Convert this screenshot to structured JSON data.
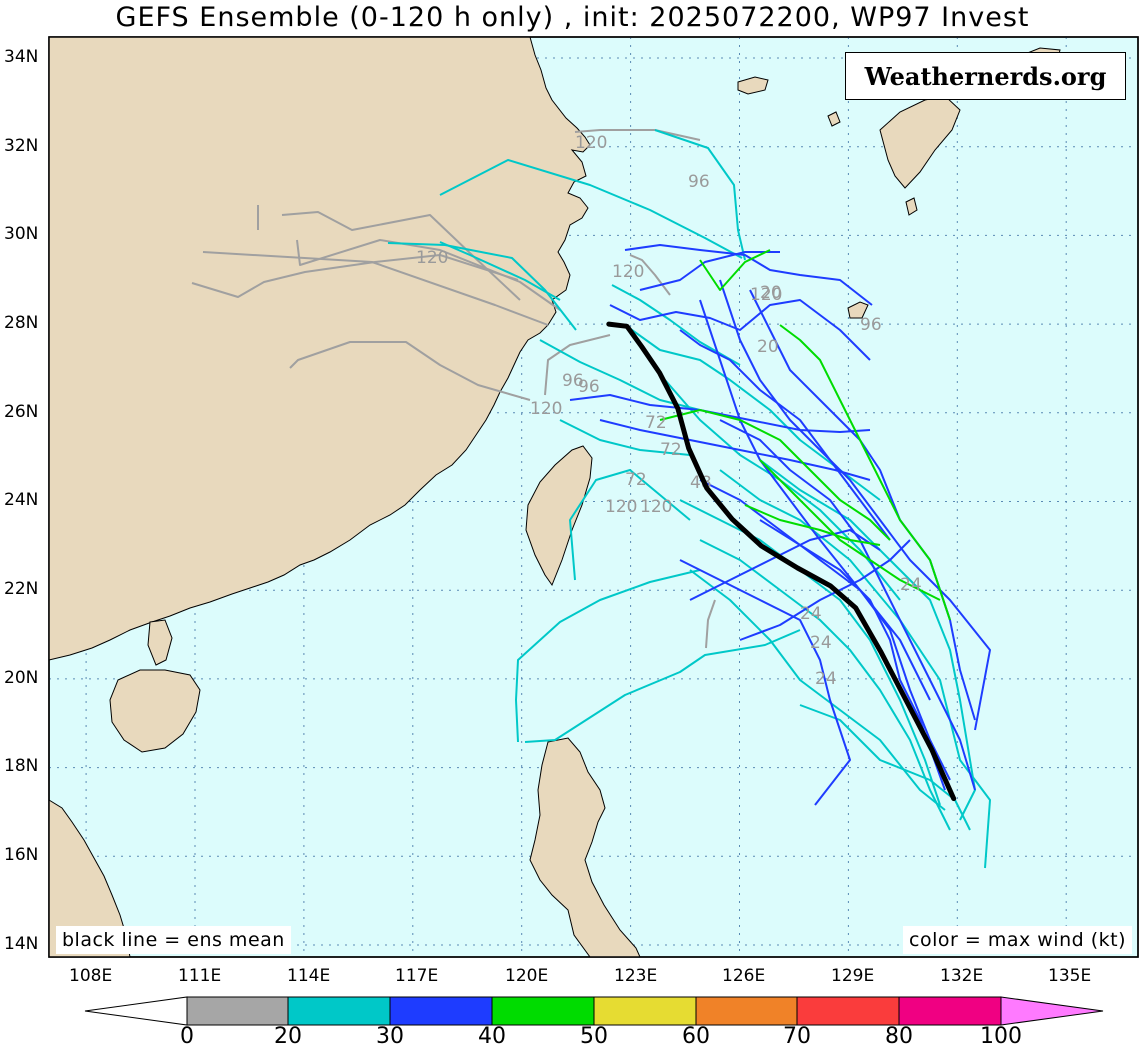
{
  "title": "GEFS Ensemble (0-120 h only) , init: 2025072200, WP97 Invest",
  "brand": "Weathernerds.org",
  "legend_left": "black line = ens mean",
  "legend_right": "color = max wind (kt)",
  "lat_labels": [
    "34N",
    "32N",
    "30N",
    "28N",
    "26N",
    "24N",
    "22N",
    "20N",
    "18N",
    "16N",
    "14N"
  ],
  "lon_labels": [
    "108E",
    "111E",
    "114E",
    "117E",
    "120E",
    "123E",
    "126E",
    "129E",
    "132E",
    "135E"
  ],
  "colorbar": {
    "ticks": [
      "0",
      "20",
      "30",
      "40",
      "50",
      "60",
      "70",
      "80",
      "100"
    ],
    "colors": [
      "#a6a6a6",
      "#00c8c8",
      "#1e3cff",
      "#00dc00",
      "#e6dc32",
      "#f08228",
      "#fa3c3c",
      "#f00082",
      "#ff7aff"
    ]
  },
  "track_colors": {
    "gray": "#a0a0a0",
    "cyan": "#00c8c8",
    "blue": "#1e3cff",
    "green": "#00dc00",
    "mean": "#000000"
  },
  "map_colors": {
    "ocean": "#dcfcfc",
    "land": "#e8d9bd",
    "grid": "#5a8ab4"
  },
  "hour_labels": [
    "120",
    "96",
    "120",
    "120",
    "120",
    "20",
    "96",
    "120",
    "20",
    "24",
    "24",
    "24",
    "24",
    "96",
    "72",
    "96",
    "72",
    "120",
    "120",
    "72",
    "48"
  ],
  "ens_mean": [
    {
      "lon": 131.9,
      "lat": 17.3
    },
    {
      "lon": 131.3,
      "lat": 18.4
    },
    {
      "lon": 130.6,
      "lat": 19.5
    },
    {
      "lon": 129.9,
      "lat": 20.6
    },
    {
      "lon": 129.2,
      "lat": 21.6
    },
    {
      "lon": 128.5,
      "lat": 22.1
    },
    {
      "lon": 127.6,
      "lat": 22.5
    },
    {
      "lon": 126.6,
      "lat": 23.0
    },
    {
      "lon": 125.8,
      "lat": 23.6
    },
    {
      "lon": 125.1,
      "lat": 24.3
    },
    {
      "lon": 124.6,
      "lat": 25.2
    },
    {
      "lon": 124.3,
      "lat": 26.1
    },
    {
      "lon": 123.8,
      "lat": 26.9
    },
    {
      "lon": 123.3,
      "lat": 27.5
    },
    {
      "lon": 122.9,
      "lat": 27.95
    },
    {
      "lon": 122.4,
      "lat": 28.0
    }
  ]
}
